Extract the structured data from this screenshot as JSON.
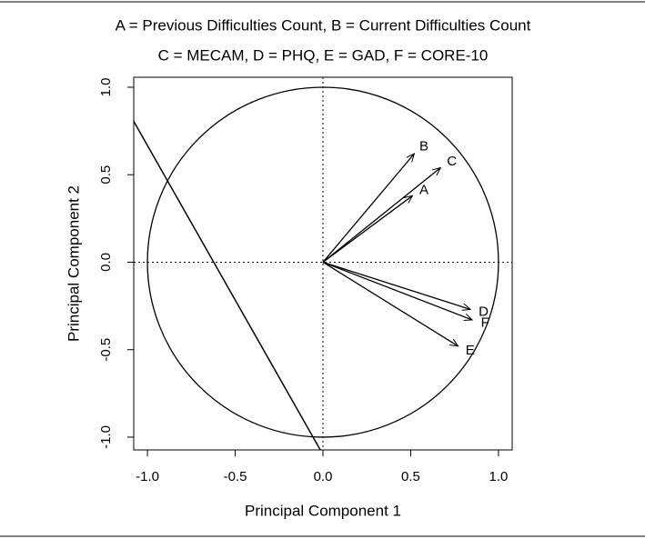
{
  "chart_data": {
    "type": "biplot",
    "title": "A = Previous Difficulties Count, B = Current Difficulties Count",
    "subtitle": "C = MECAM, D = PHQ, E = GAD, F = CORE-10",
    "xlabel": "Principal Component 1",
    "ylabel": "Principal Component 2",
    "labels": [
      "A",
      "B",
      "C",
      "D",
      "E",
      "F"
    ],
    "x": [
      0.51,
      0.52,
      0.67,
      0.84,
      0.77,
      0.85
    ],
    "y": [
      0.38,
      0.62,
      0.54,
      -0.27,
      -0.48,
      -0.33
    ],
    "color": "#000000",
    "circle_radius": 1,
    "line": {
      "x": [
        -1.078,
        -0.015
      ],
      "y": [
        0.805,
        -1.073
      ]
    },
    "xlim": [
      -1.078,
      1.078
    ],
    "ylim": [
      -1.073,
      1.057
    ],
    "xticks": [
      {
        "value": -1,
        "label": "-1.0"
      },
      -0.5,
      {
        "value": 0,
        "label": "0.0"
      },
      0.5,
      {
        "value": 1,
        "label": "1.0"
      }
    ],
    "yticks": [
      {
        "value": -1,
        "label": "-1.0"
      },
      -0.5,
      {
        "value": 0,
        "label": "0.0"
      },
      0.5,
      {
        "value": 1,
        "label": "1.0"
      }
    ]
  }
}
